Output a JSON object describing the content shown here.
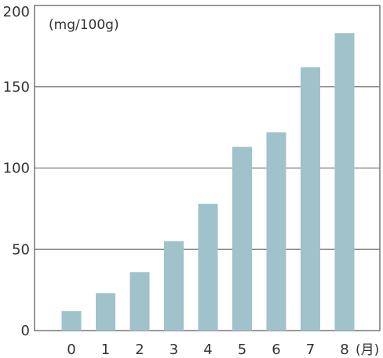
{
  "chart_data": {
    "type": "bar",
    "title": "",
    "xlabel": "",
    "ylabel": "",
    "unit_label": "(mg/100g)",
    "x_unit_label": "(月)",
    "categories": [
      "0",
      "1",
      "2",
      "3",
      "4",
      "5",
      "6",
      "7",
      "8"
    ],
    "values": [
      12,
      23,
      36,
      55,
      78,
      113,
      122,
      162,
      183
    ],
    "ylim": [
      0,
      200
    ],
    "yticks": [
      0,
      50,
      100,
      150,
      200
    ],
    "grid": true,
    "legend": "none",
    "colors": {
      "bar": "#9fc2cb",
      "axis": "#555555",
      "grid": "#777777",
      "text": "#333333"
    }
  }
}
